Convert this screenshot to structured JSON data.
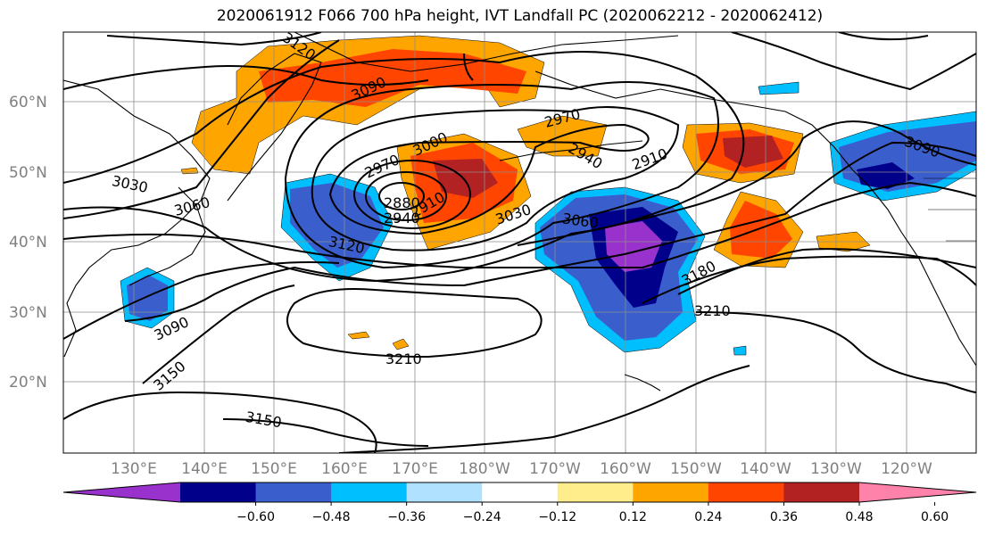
{
  "title": "2020061912 F066 700 hPa height, IVT Landfall PC (2020062212 - 2020062412)",
  "lat_labels": [
    "60°N",
    "50°N",
    "40°N",
    "30°N",
    "20°N"
  ],
  "lon_labels": [
    "130°E",
    "140°E",
    "150°E",
    "160°E",
    "170°E",
    "180°W",
    "170°W",
    "160°W",
    "150°W",
    "140°W",
    "130°W",
    "120°W"
  ],
  "contour_labels": [
    {
      "text": "3120"
    },
    {
      "text": "3090"
    },
    {
      "text": "3030"
    },
    {
      "text": "3060"
    },
    {
      "text": "2970"
    },
    {
      "text": "3000"
    },
    {
      "text": "2880"
    },
    {
      "text": "2910"
    },
    {
      "text": "2940"
    },
    {
      "text": "2970"
    },
    {
      "text": "2940"
    },
    {
      "text": "2910"
    },
    {
      "text": "3030"
    },
    {
      "text": "3060"
    },
    {
      "text": "3120"
    },
    {
      "text": "3180"
    },
    {
      "text": "3210"
    },
    {
      "text": "3090"
    },
    {
      "text": "3150"
    },
    {
      "text": "3210"
    },
    {
      "text": "3150"
    },
    {
      "text": "3090"
    }
  ],
  "colorbar": {
    "colors": [
      "#9932cc",
      "#00008b",
      "#3a5fcd",
      "#00bfff",
      "#b0e2ff",
      "#ffffff",
      "#ffec8b",
      "#ffa500",
      "#ff4500",
      "#b22222",
      "#ff82ab"
    ],
    "tick_labels": [
      "−0.60",
      "−0.48",
      "−0.36",
      "−0.24",
      "−0.12",
      "0.12",
      "0.24",
      "0.36",
      "0.48",
      "0.60"
    ]
  }
}
